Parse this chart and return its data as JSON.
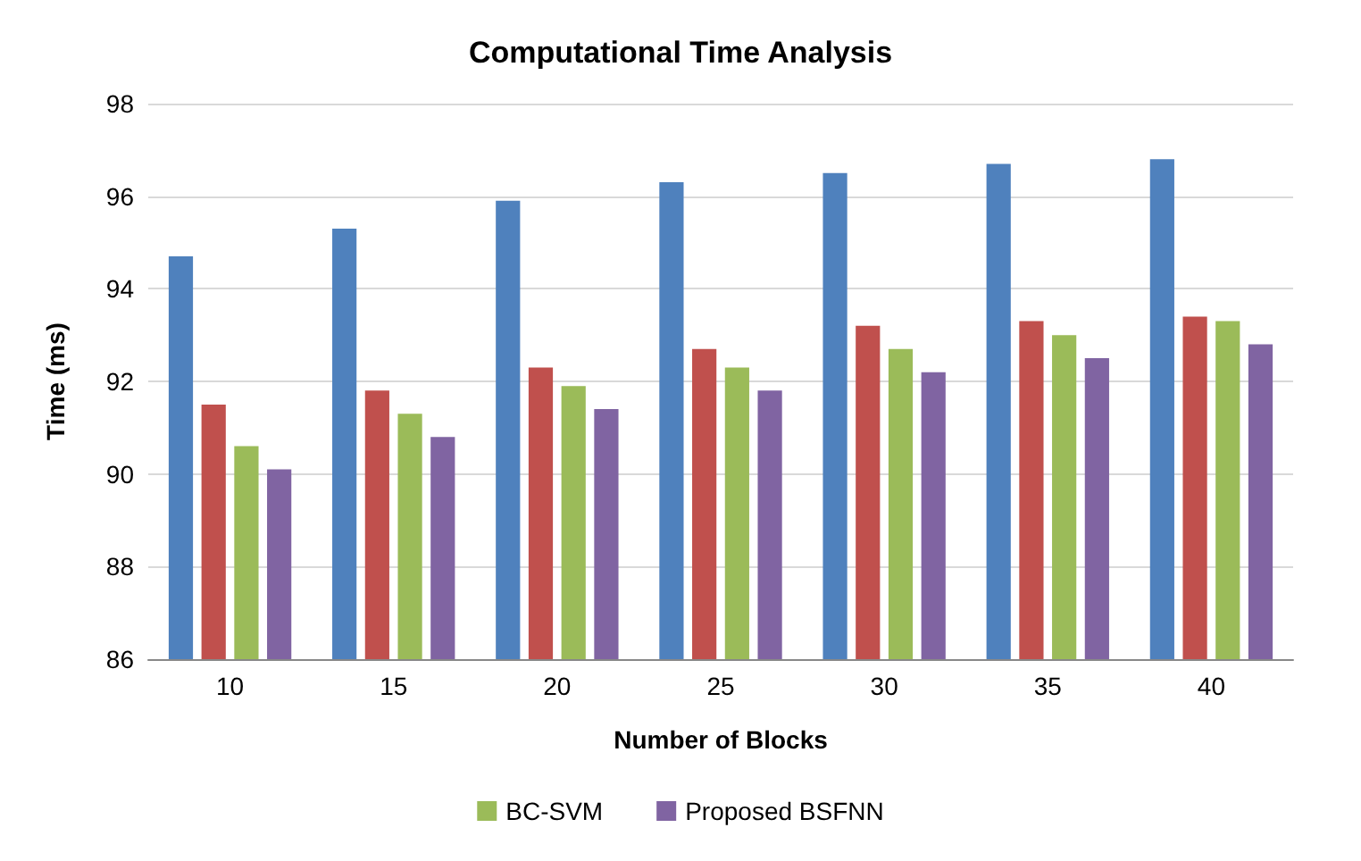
{
  "chart_data": {
    "type": "bar",
    "title": "Computational Time Analysis",
    "xlabel": "Number of Blocks",
    "ylabel": "Time (ms)",
    "categories": [
      "10",
      "15",
      "20",
      "25",
      "30",
      "35",
      "40"
    ],
    "series": [
      {
        "color": "#4f81bd",
        "values": [
          94.7,
          95.3,
          95.9,
          96.3,
          96.5,
          96.7,
          96.8
        ]
      },
      {
        "color": "#c0504d",
        "values": [
          91.5,
          91.8,
          92.3,
          92.7,
          93.2,
          93.3,
          93.4
        ]
      },
      {
        "name": "BC-SVM",
        "color": "#9bbb59",
        "values": [
          90.6,
          91.3,
          91.9,
          92.3,
          92.7,
          93.0,
          93.3
        ]
      },
      {
        "name": "Proposed BSFNN",
        "color": "#8064a2",
        "values": [
          90.1,
          90.8,
          91.4,
          91.8,
          92.2,
          92.5,
          92.8
        ]
      }
    ],
    "ylim": [
      86,
      98
    ],
    "yticks": [
      86,
      88,
      90,
      92,
      94,
      96,
      98
    ],
    "grid": "y",
    "legend": "bottom"
  }
}
